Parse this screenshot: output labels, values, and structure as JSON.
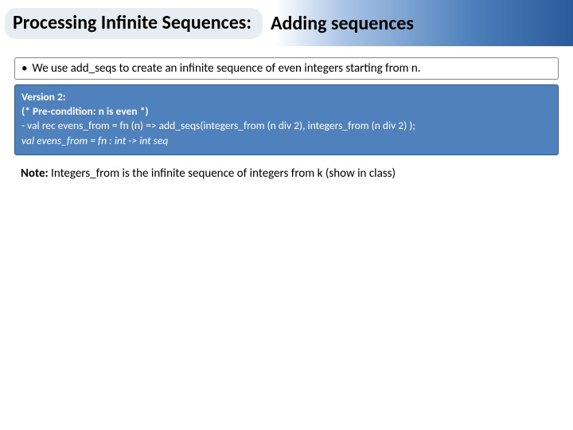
{
  "header": {
    "title_left": "Processing Infinite Sequences:",
    "title_right": "Adding sequences",
    "band_gradient_start": "#ffffff",
    "band_gradient_mid": "#a9c4e6",
    "band_gradient_end": "#2a5a9a",
    "pill_bg": "#e8edf3"
  },
  "bullet": {
    "text": "We use add_seqs to create an infinite sequence of even integers starting from n."
  },
  "code": {
    "bg": "#4f81bd",
    "border": "#2e5a8e",
    "line1": "Version 2:",
    "line2": "(* Pre-condition:  n is even *)",
    "line3": "- val rec evens_from  = fn (n) => add_seqs(integers_from (n div 2),  integers_from (n div 2) );",
    "line4": "val evens_from = fn : int -> int seq"
  },
  "note": {
    "bold": "Note:",
    "text": " Integers_from is the infinite sequence of integers from k (show in class)"
  }
}
